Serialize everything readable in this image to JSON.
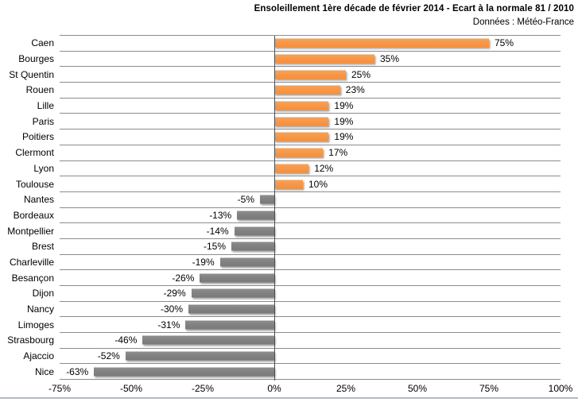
{
  "header": {
    "title": "Ensoleillement 1ère décade de février 2014 - Ecart à la normale 81 / 2010",
    "subtitle": "Données : Météo-France"
  },
  "chart_data": {
    "type": "bar",
    "orientation": "horizontal",
    "title": "Ensoleillement 1ère décade de février 2014 - Ecart à la normale 81 / 2010",
    "subtitle": "Données : Météo-France",
    "categories": [
      "Caen",
      "Bourges",
      "St Quentin",
      "Rouen",
      "Lille",
      "Paris",
      "Poitiers",
      "Clermont",
      "Lyon",
      "Toulouse",
      "Nantes",
      "Bordeaux",
      "Montpellier",
      "Brest",
      "Charleville",
      "Besançon",
      "Dijon",
      "Nancy",
      "Limoges",
      "Strasbourg",
      "Ajaccio",
      "Nice"
    ],
    "values": [
      75,
      35,
      25,
      23,
      19,
      19,
      19,
      17,
      12,
      10,
      -5,
      -13,
      -14,
      -15,
      -19,
      -26,
      -29,
      -30,
      -31,
      -46,
      -52,
      -63
    ],
    "value_labels": [
      "75%",
      "35%",
      "25%",
      "23%",
      "19%",
      "19%",
      "19%",
      "17%",
      "12%",
      "10%",
      "-5%",
      "-13%",
      "-14%",
      "-15%",
      "-19%",
      "-26%",
      "-29%",
      "-30%",
      "-31%",
      "-46%",
      "-52%",
      "-63%"
    ],
    "unit": "%",
    "xlim": [
      -75,
      100
    ],
    "xticks": [
      -75,
      -50,
      -25,
      0,
      25,
      50,
      75,
      100
    ],
    "xtick_labels": [
      "-75%",
      "-50%",
      "-25%",
      "0%",
      "25%",
      "50%",
      "75%",
      "100%"
    ],
    "grid": true,
    "legend": false,
    "colors": {
      "positive_bar": "#F79646",
      "negative_bar": "#808080",
      "gridline": "#8C8C8C",
      "zero_axis": "#4D4D4D",
      "text": "#000000",
      "background": "#FFFFFF"
    }
  }
}
